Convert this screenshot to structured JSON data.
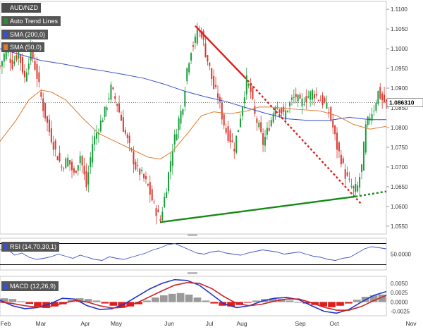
{
  "chart_data": [
    {
      "type": "candlestick",
      "symbol": "AUD/NZD",
      "price_axis": {
        "ticks": [
          "1.1100",
          "1.1050",
          "1.1000",
          "1.0950",
          "1.0900",
          "1.0850",
          "1.0800",
          "1.0750",
          "1.0700",
          "1.0650",
          "1.0600",
          "1.0550"
        ],
        "ylim": [
          1.053,
          1.112
        ]
      },
      "time_axis": {
        "labels": [
          "Feb",
          "Mar",
          "Apr",
          "May",
          "Jun",
          "Jul",
          "Aug",
          "Sep",
          "Oct",
          "Nov"
        ]
      },
      "last_price": "1.086310",
      "indicators": [
        "Auto Trend Lines",
        "SMA (200,0)",
        "SMA (50,0)"
      ],
      "indicator_colors": {
        "sma200": "#3a4fc8",
        "sma50": "#e07b2a",
        "trend_down": "#e0201b",
        "trend_up": "#148a14",
        "bull": "#1a9f3c",
        "bear": "#d93a32"
      },
      "price_path": [
        [
          0,
          1.0955
        ],
        [
          3,
          1.1
        ],
        [
          6,
          1.096
        ],
        [
          9,
          1.099
        ],
        [
          12,
          1.0925
        ],
        [
          15,
          1.1
        ],
        [
          18,
          1.093
        ],
        [
          21,
          1.085
        ],
        [
          24,
          1.079
        ],
        [
          27,
          1.074
        ],
        [
          30,
          1.07
        ],
        [
          33,
          1.072
        ],
        [
          36,
          1.068
        ],
        [
          39,
          1.073
        ],
        [
          42,
          1.065
        ],
        [
          45,
          1.076
        ],
        [
          48,
          1.08
        ],
        [
          51,
          1.084
        ],
        [
          54,
          1.09
        ],
        [
          57,
          1.086
        ],
        [
          60,
          1.08
        ],
        [
          63,
          1.075
        ],
        [
          66,
          1.07
        ],
        [
          69,
          1.068
        ],
        [
          72,
          1.065
        ],
        [
          75,
          1.06
        ],
        [
          78,
          1.0565
        ],
        [
          81,
          1.065
        ],
        [
          84,
          1.075
        ],
        [
          87,
          1.082
        ],
        [
          89,
          1.086
        ],
        [
          91,
          1.095
        ],
        [
          93,
          1.1
        ],
        [
          95,
          1.102
        ],
        [
          96,
          1.105
        ],
        [
          98,
          1.104
        ],
        [
          100,
          1.099
        ],
        [
          102,
          1.095
        ],
        [
          104,
          1.09
        ],
        [
          106,
          1.088
        ],
        [
          108,
          1.083
        ],
        [
          110,
          1.079
        ],
        [
          112,
          1.077
        ],
        [
          114,
          1.075
        ],
        [
          116,
          1.08
        ],
        [
          118,
          1.086
        ],
        [
          120,
          1.092
        ],
        [
          122,
          1.089
        ],
        [
          124,
          1.083
        ],
        [
          126,
          1.08
        ],
        [
          128,
          1.076
        ],
        [
          130,
          1.079
        ],
        [
          132,
          1.082
        ],
        [
          134,
          1.086
        ],
        [
          136,
          1.085
        ],
        [
          138,
          1.083
        ],
        [
          140,
          1.085
        ],
        [
          142,
          1.087
        ],
        [
          144,
          1.088
        ],
        [
          146,
          1.086
        ],
        [
          148,
          1.087
        ],
        [
          150,
          1.088
        ],
        [
          152,
          1.089
        ],
        [
          154,
          1.088
        ],
        [
          156,
          1.087
        ],
        [
          158,
          1.086
        ],
        [
          160,
          1.084
        ],
        [
          162,
          1.08
        ],
        [
          164,
          1.075
        ],
        [
          166,
          1.072
        ],
        [
          168,
          1.068
        ],
        [
          170,
          1.066
        ],
        [
          172,
          1.064
        ],
        [
          174,
          1.065
        ],
        [
          176,
          1.07
        ],
        [
          178,
          1.08
        ],
        [
          180,
          1.083
        ],
        [
          182,
          1.085
        ],
        [
          184,
          1.089
        ],
        [
          186,
          1.087
        ],
        [
          188,
          1.086
        ]
      ],
      "sma200": [
        [
          0,
          1.1
        ],
        [
          10,
          1.0985
        ],
        [
          20,
          1.097
        ],
        [
          30,
          1.0962
        ],
        [
          40,
          1.0952
        ],
        [
          50,
          1.0944
        ],
        [
          60,
          1.0935
        ],
        [
          70,
          1.0925
        ],
        [
          80,
          1.091
        ],
        [
          90,
          1.0892
        ],
        [
          100,
          1.0878
        ],
        [
          110,
          1.0866
        ],
        [
          120,
          1.085
        ],
        [
          130,
          1.0835
        ],
        [
          140,
          1.0822
        ],
        [
          150,
          1.0818
        ],
        [
          160,
          1.0818
        ],
        [
          170,
          1.0826
        ],
        [
          180,
          1.082
        ],
        [
          188,
          1.082
        ]
      ],
      "sma50": [
        [
          0,
          1.0765
        ],
        [
          8,
          1.082
        ],
        [
          14,
          1.087
        ],
        [
          20,
          1.0895
        ],
        [
          25,
          1.089
        ],
        [
          32,
          1.087
        ],
        [
          40,
          1.0825
        ],
        [
          48,
          1.0785
        ],
        [
          56,
          1.0765
        ],
        [
          64,
          1.0745
        ],
        [
          72,
          1.0725
        ],
        [
          78,
          1.072
        ],
        [
          84,
          1.074
        ],
        [
          92,
          1.079
        ],
        [
          98,
          1.083
        ],
        [
          104,
          1.084
        ],
        [
          112,
          1.0835
        ],
        [
          120,
          1.0842
        ],
        [
          126,
          1.0852
        ],
        [
          132,
          1.0852
        ],
        [
          140,
          1.0848
        ],
        [
          148,
          1.0845
        ],
        [
          156,
          1.0842
        ],
        [
          164,
          1.083
        ],
        [
          172,
          1.0808
        ],
        [
          180,
          1.0796
        ],
        [
          188,
          1.0803
        ]
      ],
      "trend_lines": [
        {
          "type": "down",
          "x0": 95,
          "y0": 1.1058,
          "x1": 119,
          "y1": 1.0928,
          "extend_x": 176,
          "extend_y": 1.0605
        },
        {
          "type": "up",
          "x0": 78,
          "y0": 1.056,
          "x1": 173,
          "y1": 1.0625,
          "extend_x": 188,
          "extend_y": 1.0638
        }
      ]
    },
    {
      "type": "line",
      "indicator": "RSI (14,70,30,1)",
      "levels": [
        70,
        30
      ],
      "tick_label": "50.0000",
      "ylim": [
        20,
        80
      ],
      "values": [
        58,
        60,
        48,
        52,
        44,
        40,
        42,
        45,
        50,
        46,
        42,
        48,
        44,
        40,
        38,
        45,
        42,
        40,
        44,
        48,
        52,
        58,
        62,
        68,
        70,
        64,
        58,
        52,
        50,
        54,
        56,
        52,
        50,
        48,
        52,
        55,
        58,
        56,
        54,
        50,
        52,
        54,
        50,
        46,
        44,
        40,
        38,
        42,
        44,
        52,
        60,
        64,
        62,
        60
      ]
    },
    {
      "type": "bar",
      "indicator": "MACD (12,26,9)",
      "tick_labels": [
        "0.0050",
        "0.0025",
        "0.0000",
        "-0.0025"
      ],
      "ylim": [
        -0.0037,
        0.0069
      ],
      "histogram": [
        0.001,
        0.0008,
        0.0002,
        -0.0005,
        -0.0012,
        -0.0016,
        -0.0012,
        -0.0006,
        0.0005,
        0.001,
        0.0008,
        0.0004,
        -0.0004,
        -0.001,
        -0.0014,
        -0.0012,
        -0.0006,
        0.0004,
        0.0012,
        0.0018,
        0.0022,
        0.0024,
        0.002,
        0.0012,
        0.0004,
        -0.0004,
        -0.001,
        -0.0012,
        -0.0008,
        -0.0002,
        0.0004,
        0.0008,
        0.001,
        0.0008,
        0.0004,
        0.0,
        -0.0004,
        -0.0008,
        -0.0012,
        -0.0014,
        -0.001,
        -0.0004,
        0.0006,
        0.0014,
        0.0018,
        0.002
      ],
      "macd_line": [
        0.0005,
        -0.001,
        -0.0018,
        -0.0015,
        -0.0005,
        0.001,
        0.0008,
        -0.001,
        -0.002,
        -0.0018,
        -0.0005,
        0.0015,
        0.0035,
        0.005,
        0.006,
        0.0058,
        0.0045,
        0.002,
        -0.0005,
        -0.0015,
        -0.001,
        0.0002,
        0.001,
        0.0012,
        0.0006,
        -0.001,
        -0.0025,
        -0.003,
        -0.002,
        0.0,
        0.0018,
        0.0028
      ],
      "signal_line": [
        0.0,
        -0.0004,
        -0.001,
        -0.0014,
        -0.0012,
        -0.0004,
        0.0004,
        0.0,
        -0.001,
        -0.0016,
        -0.0014,
        -0.0002,
        0.0014,
        0.003,
        0.0045,
        0.0052,
        0.005,
        0.0036,
        0.0014,
        -0.0004,
        -0.001,
        -0.0006,
        0.0002,
        0.0008,
        0.0008,
        -0.0002,
        -0.0014,
        -0.0022,
        -0.0022,
        -0.0012,
        0.0004,
        0.0018
      ]
    }
  ],
  "legend": {
    "symbol": "AUD/NZD",
    "auto_trend": "Auto Trend Lines",
    "sma200": "SMA (200,0)",
    "sma50": "SMA (50,0)",
    "rsi": "RSI (14,70,30,1)",
    "macd": "MACD (12,26,9)"
  }
}
